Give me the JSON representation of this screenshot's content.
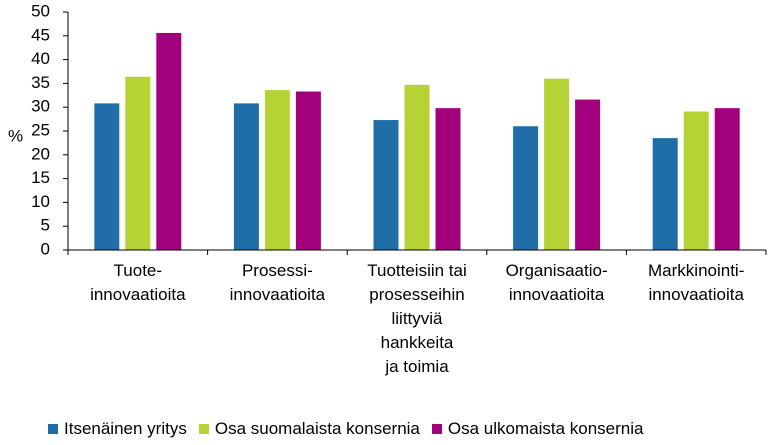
{
  "chart_data": {
    "type": "bar",
    "title": "",
    "xlabel": "",
    "ylabel": "%",
    "ylim": [
      0,
      50
    ],
    "yticks": [
      0,
      5,
      10,
      15,
      20,
      25,
      30,
      35,
      40,
      45,
      50
    ],
    "grid": false,
    "legend_position": "bottom",
    "categories": [
      [
        "Tuote-",
        "innovaatioita"
      ],
      [
        "Prosessi-",
        "innovaatioita"
      ],
      [
        "Tuotteisiin tai",
        "prosesseihin",
        "liittyviä",
        "hankkeita",
        "ja toimia"
      ],
      [
        "Organisaatio-",
        "innovaatioita"
      ],
      [
        "Markkinointi-",
        "innovaatioita"
      ]
    ],
    "series": [
      {
        "name": "Itsenäinen yritys",
        "color": "#1f6ea8",
        "values": [
          30.8,
          30.8,
          27.3,
          26.0,
          23.5
        ]
      },
      {
        "name": "Osa suomalaista konsernia",
        "color": "#b5d334",
        "values": [
          36.4,
          33.6,
          34.7,
          36.0,
          29.1
        ]
      },
      {
        "name": "Osa ulkomaista konsernia",
        "color": "#a3007e",
        "values": [
          45.6,
          33.3,
          29.8,
          31.6,
          29.8
        ]
      }
    ]
  }
}
